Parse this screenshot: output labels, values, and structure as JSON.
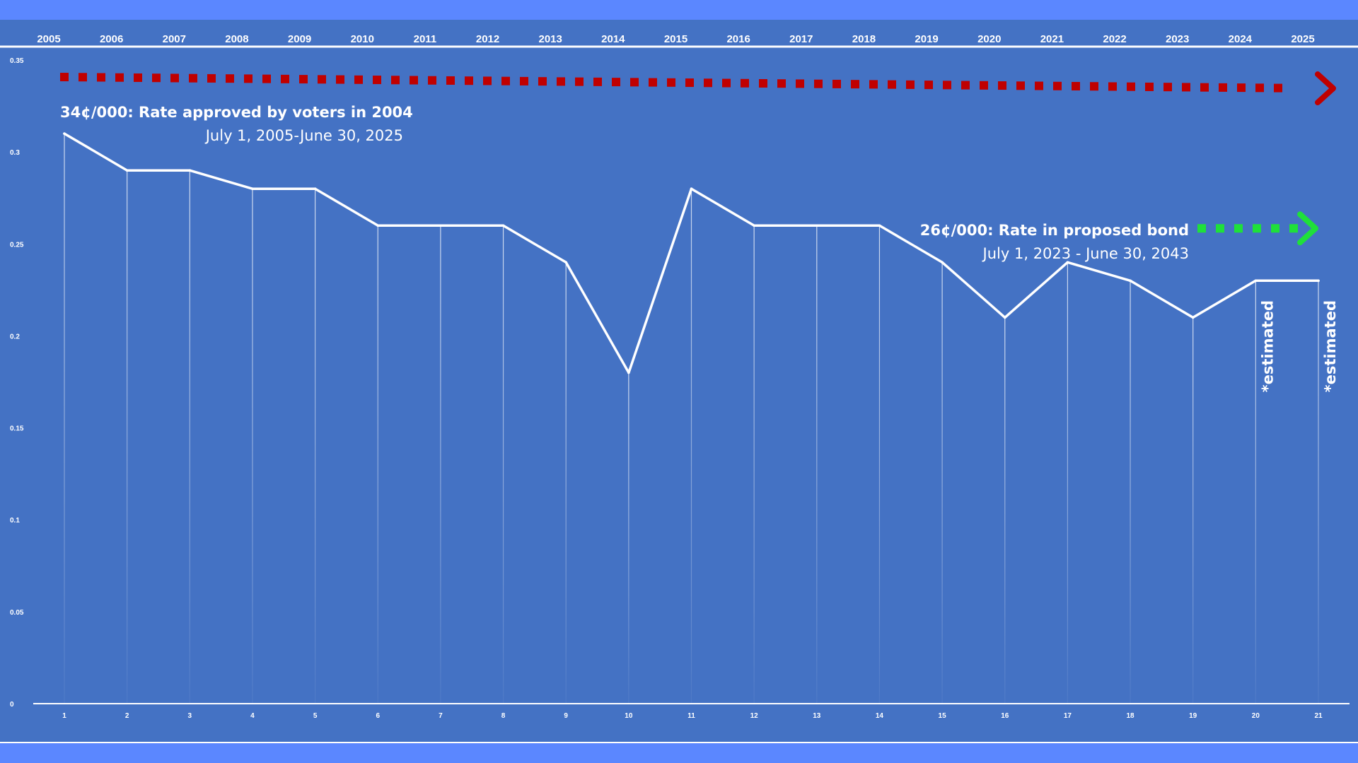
{
  "colors": {
    "outer_background": "#5b87ff",
    "plot_background": "#4472c4",
    "line": "#ffffff",
    "approved_arrow": "#c00000",
    "proposed_arrow": "#1fe03a"
  },
  "chart_data": {
    "type": "line",
    "grid": false,
    "ylim": [
      0,
      0.35
    ],
    "yticks": [
      "0",
      "0.05",
      "0.1",
      "0.15",
      "0.2",
      "0.25",
      "0.3",
      "0.35"
    ],
    "categories": [
      "1",
      "2",
      "3",
      "4",
      "5",
      "6",
      "7",
      "8",
      "9",
      "10",
      "11",
      "12",
      "13",
      "14",
      "15",
      "16",
      "17",
      "18",
      "19",
      "20",
      "21"
    ],
    "years": [
      "2005",
      "2006",
      "2007",
      "2008",
      "2009",
      "2010",
      "2011",
      "2012",
      "2013",
      "2014",
      "2015",
      "2016",
      "2017",
      "2018",
      "2019",
      "2020",
      "2021",
      "2022",
      "2023",
      "2024",
      "2025"
    ],
    "values": [
      0.31,
      0.29,
      0.29,
      0.28,
      0.28,
      0.26,
      0.26,
      0.26,
      0.24,
      0.18,
      0.28,
      0.26,
      0.26,
      0.26,
      0.24,
      0.21,
      0.24,
      0.23,
      0.21,
      0.23,
      0.23
    ],
    "annotations": {
      "approved": {
        "value": 0.34,
        "title": "34¢/000: Rate approved by voters in 2004",
        "subtitle": "July 1, 2005-June 30, 2025"
      },
      "proposed": {
        "value": 0.26,
        "title": "26¢/000: Rate in proposed bond",
        "subtitle": "July 1, 2023 - June 30, 2043"
      },
      "estimated": [
        {
          "category": "20",
          "text": "*estimated"
        },
        {
          "category": "21",
          "text": "*estimated"
        }
      ]
    }
  }
}
